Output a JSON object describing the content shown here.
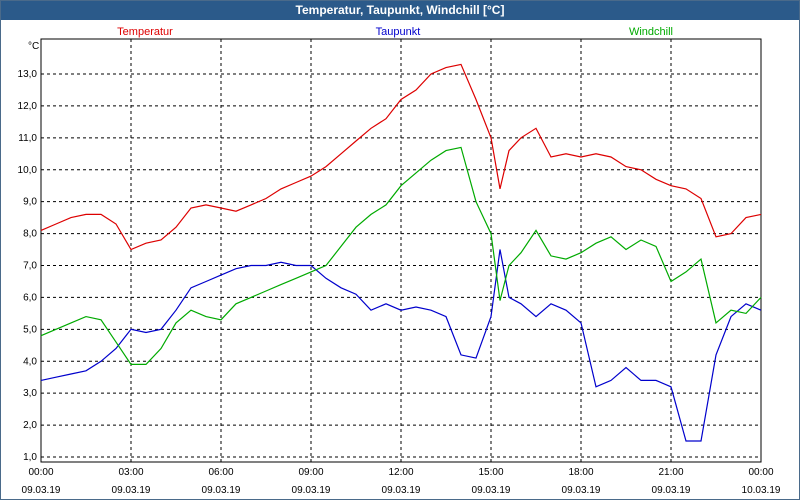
{
  "window": {
    "title": "Temperatur, Taupunkt, Windchill [°C]"
  },
  "chart_data": {
    "type": "line",
    "title": "Temperatur, Taupunkt, Windchill [°C]",
    "ylabel": "°C",
    "ylim": [
      1.0,
      13.0
    ],
    "xlim": [
      0,
      24
    ],
    "grid": true,
    "legend_placement": "top",
    "y_ticks": [
      "1,0",
      "2,0",
      "3,0",
      "4,0",
      "5,0",
      "6,0",
      "7,0",
      "8,0",
      "9,0",
      "10,0",
      "11,0",
      "12,0",
      "13,0"
    ],
    "x_ticks": [
      {
        "time": "00:00",
        "date": "09.03.19"
      },
      {
        "time": "03:00",
        "date": "09.03.19"
      },
      {
        "time": "06:00",
        "date": "09.03.19"
      },
      {
        "time": "09:00",
        "date": "09.03.19"
      },
      {
        "time": "12:00",
        "date": "09.03.19"
      },
      {
        "time": "15:00",
        "date": "09.03.19"
      },
      {
        "time": "18:00",
        "date": "09.03.19"
      },
      {
        "time": "21:00",
        "date": "09.03.19"
      },
      {
        "time": "00:00",
        "date": "10.03.19"
      }
    ],
    "series": [
      {
        "name": "Temperatur",
        "color": "#dd0000",
        "x": [
          0,
          0.5,
          1,
          1.5,
          2,
          2.5,
          3,
          3.5,
          4,
          4.5,
          5,
          5.5,
          6,
          6.5,
          7,
          7.5,
          8,
          8.5,
          9,
          9.5,
          10,
          10.5,
          11,
          11.5,
          12,
          12.5,
          13,
          13.5,
          14,
          14.5,
          15,
          15.3,
          15.6,
          16,
          16.5,
          17,
          17.5,
          18,
          18.5,
          19,
          19.5,
          20,
          20.5,
          21,
          21.5,
          22,
          22.5,
          23,
          23.5,
          24
        ],
        "values": [
          8.1,
          8.3,
          8.5,
          8.6,
          8.6,
          8.3,
          7.5,
          7.7,
          7.8,
          8.2,
          8.8,
          8.9,
          8.8,
          8.7,
          8.9,
          9.1,
          9.4,
          9.6,
          9.8,
          10.1,
          10.5,
          10.9,
          11.3,
          11.6,
          12.2,
          12.5,
          13.0,
          13.2,
          13.3,
          12.2,
          11.0,
          9.4,
          10.6,
          11.0,
          11.3,
          10.4,
          10.5,
          10.4,
          10.5,
          10.4,
          10.1,
          10.0,
          9.7,
          9.5,
          9.4,
          9.1,
          7.9,
          8.0,
          8.5,
          8.6
        ]
      },
      {
        "name": "Taupunkt",
        "color": "#0000cc",
        "x": [
          0,
          0.5,
          1,
          1.5,
          2,
          2.5,
          3,
          3.5,
          4,
          4.5,
          5,
          5.5,
          6,
          6.5,
          7,
          7.5,
          8,
          8.5,
          9,
          9.5,
          10,
          10.5,
          11,
          11.5,
          12,
          12.5,
          13,
          13.5,
          14,
          14.5,
          15,
          15.3,
          15.6,
          16,
          16.5,
          17,
          17.5,
          18,
          18.5,
          19,
          19.5,
          20,
          20.5,
          21,
          21.5,
          22,
          22.5,
          23,
          23.5,
          24
        ],
        "values": [
          3.4,
          3.5,
          3.6,
          3.7,
          4.0,
          4.4,
          5.0,
          4.9,
          5.0,
          5.6,
          6.3,
          6.5,
          6.7,
          6.9,
          7.0,
          7.0,
          7.1,
          7.0,
          7.0,
          6.6,
          6.3,
          6.1,
          5.6,
          5.8,
          5.6,
          5.7,
          5.6,
          5.4,
          4.2,
          4.1,
          5.4,
          7.5,
          6.0,
          5.8,
          5.4,
          5.8,
          5.6,
          5.2,
          3.2,
          3.4,
          3.8,
          3.4,
          3.4,
          3.2,
          1.5,
          1.5,
          4.2,
          5.4,
          5.8,
          5.6
        ]
      },
      {
        "name": "Windchill",
        "color": "#00aa00",
        "x": [
          0,
          0.5,
          1,
          1.5,
          2,
          2.5,
          3,
          3.5,
          4,
          4.5,
          5,
          5.5,
          6,
          6.5,
          7,
          7.5,
          8,
          8.5,
          9,
          9.5,
          10,
          10.5,
          11,
          11.5,
          12,
          12.5,
          13,
          13.5,
          14,
          14.5,
          15,
          15.3,
          15.6,
          16,
          16.5,
          17,
          17.5,
          18,
          18.5,
          19,
          19.5,
          20,
          20.5,
          21,
          21.5,
          22,
          22.5,
          23,
          23.5,
          24
        ],
        "values": [
          4.8,
          5.0,
          5.2,
          5.4,
          5.3,
          4.6,
          3.9,
          3.9,
          4.4,
          5.2,
          5.6,
          5.4,
          5.3,
          5.8,
          6.0,
          6.2,
          6.4,
          6.6,
          6.8,
          7.0,
          7.6,
          8.2,
          8.6,
          8.9,
          9.5,
          9.9,
          10.3,
          10.6,
          10.7,
          9.0,
          8.0,
          5.9,
          7.0,
          7.4,
          8.1,
          7.3,
          7.2,
          7.4,
          7.7,
          7.9,
          7.5,
          7.8,
          7.6,
          6.5,
          6.8,
          7.2,
          5.2,
          5.6,
          5.5,
          6.0
        ]
      }
    ]
  }
}
